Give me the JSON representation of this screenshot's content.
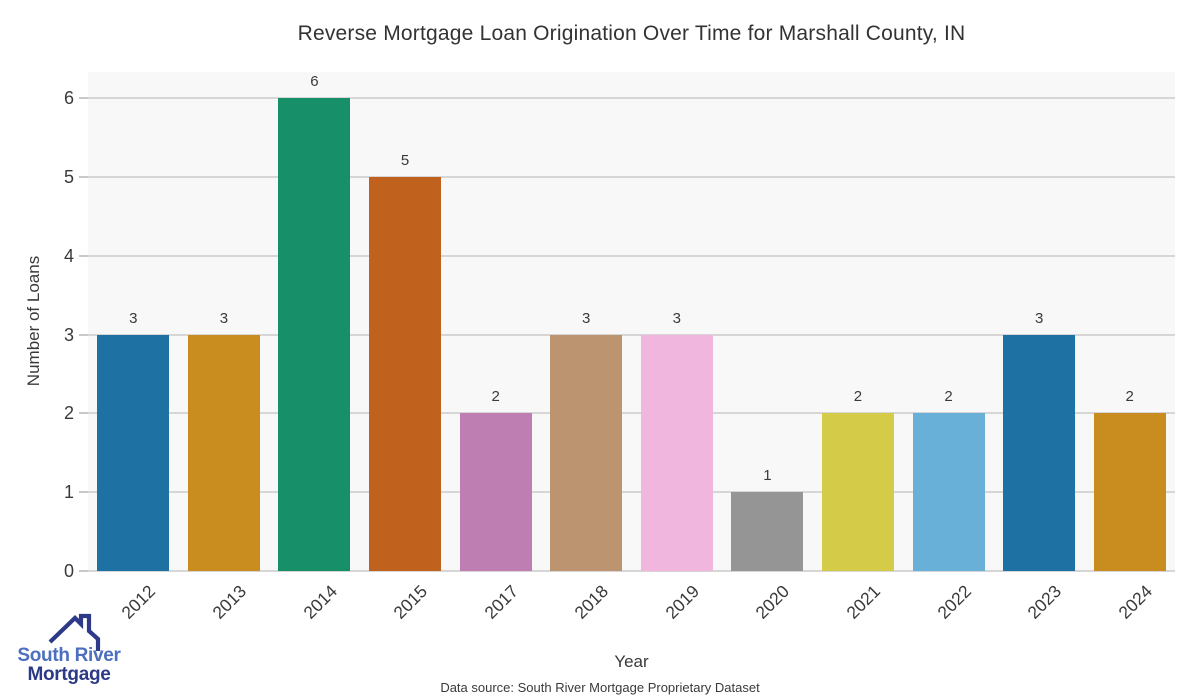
{
  "chart_data": {
    "type": "bar",
    "title": "Reverse Mortgage Loan Origination Over Time for Marshall County, IN",
    "xlabel": "Year",
    "ylabel": "Number of Loans",
    "categories": [
      "2012",
      "2013",
      "2014",
      "2015",
      "2017",
      "2018",
      "2019",
      "2020",
      "2021",
      "2022",
      "2023",
      "2024"
    ],
    "values": [
      3,
      3,
      6,
      5,
      2,
      3,
      3,
      1,
      2,
      2,
      3,
      2
    ],
    "bar_colors": [
      "#1e72a3",
      "#c98d1f",
      "#17906a",
      "#c0621d",
      "#bf7eb2",
      "#bd9470",
      "#f1b6de",
      "#959595",
      "#d4cc48",
      "#68b0d8",
      "#1e72a3",
      "#c98d1f"
    ],
    "yticks": [
      0,
      1,
      2,
      3,
      4,
      5,
      6
    ],
    "ylim": [
      0,
      6.33
    ],
    "grid": "horizontal",
    "legend": "none",
    "value_labels": true,
    "plot_bg": "#f8f8f8",
    "gridline_color": "#d6d6d6",
    "tick_mark_color": "#c9c9c9",
    "text_color": "#3a3a3a"
  },
  "footer": {
    "text": "Data source: South River Mortgage Proprietary Dataset"
  },
  "logo": {
    "line1": "South River",
    "line2": "Mortgage",
    "accent_light": "#4c6fbe",
    "accent_dark": "#2c3a87"
  }
}
